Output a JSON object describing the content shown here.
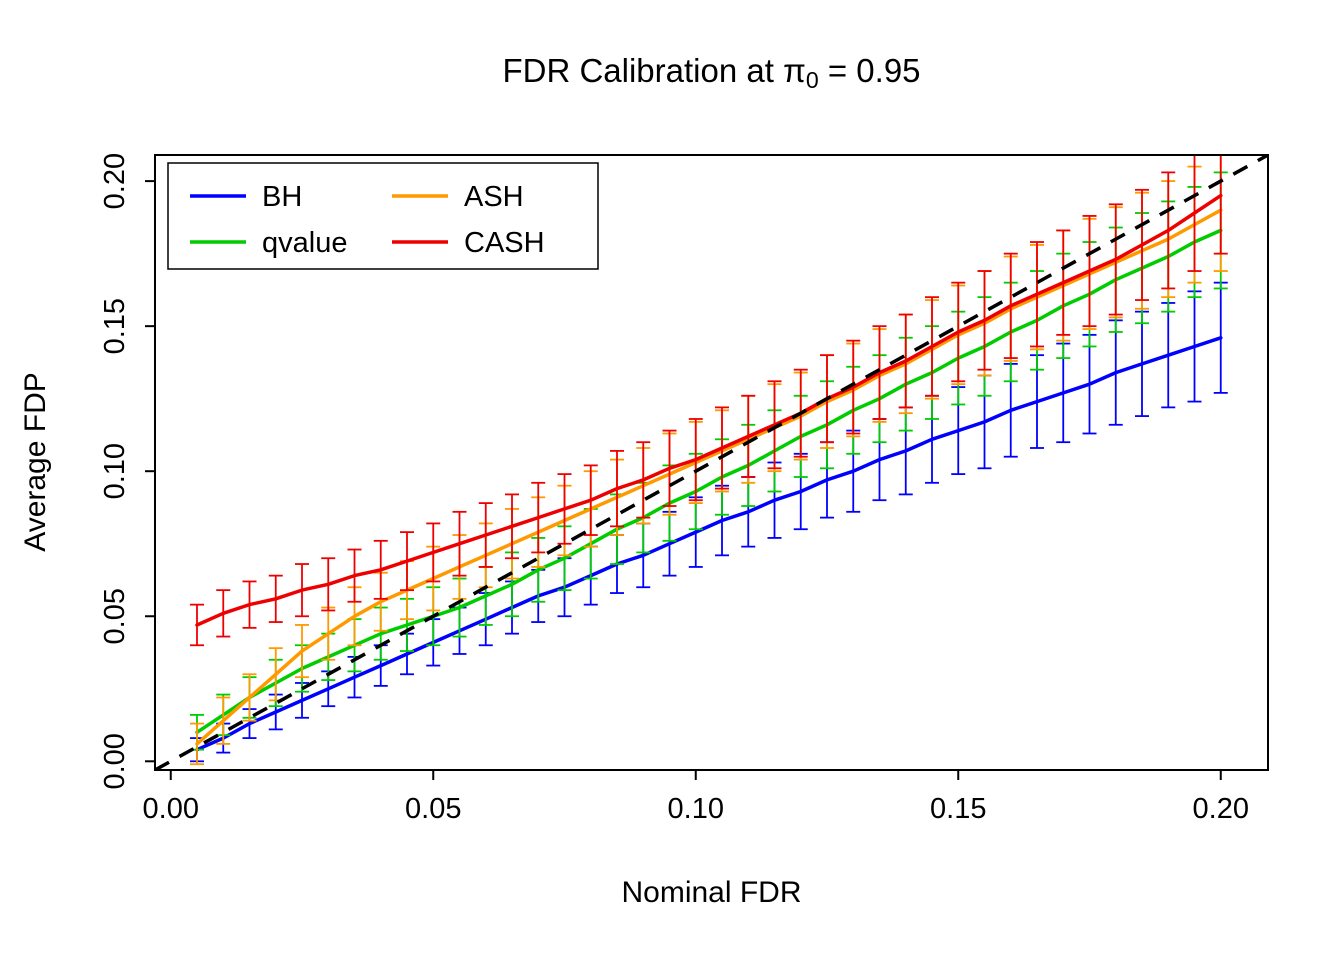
{
  "title": {
    "prefix": "FDR Calibration at π",
    "subscript": "0",
    "suffix": " = 0.95"
  },
  "chart_data": {
    "type": "line",
    "title": "FDR Calibration at π0 = 0.95",
    "xlabel": "Nominal FDR",
    "ylabel": "Average FDP",
    "xlim": [
      0,
      0.205
    ],
    "ylim": [
      0,
      0.205
    ],
    "grid": false,
    "xticks": {
      "values": [
        0,
        0.05,
        0.1,
        0.15,
        0.2
      ],
      "labels": [
        "0.00",
        "0.05",
        "0.10",
        "0.15",
        "0.20"
      ]
    },
    "yticks": {
      "values": [
        0,
        0.05,
        0.1,
        0.15,
        0.2
      ],
      "labels": [
        "0.00",
        "0.05",
        "0.10",
        "0.15",
        "0.20"
      ]
    },
    "legend": {
      "position": "top-left",
      "columns": 2,
      "entries": [
        "BH",
        "qvalue",
        "ASH",
        "CASH"
      ]
    },
    "reference_line": {
      "label": "y = x",
      "style": "dashed",
      "color": "#000000"
    },
    "x": [
      0.005,
      0.01,
      0.015,
      0.02,
      0.025,
      0.03,
      0.035,
      0.04,
      0.045,
      0.05,
      0.055,
      0.06,
      0.065,
      0.07,
      0.075,
      0.08,
      0.085,
      0.09,
      0.095,
      0.1,
      0.105,
      0.11,
      0.115,
      0.12,
      0.125,
      0.13,
      0.135,
      0.14,
      0.145,
      0.15,
      0.155,
      0.16,
      0.165,
      0.17,
      0.175,
      0.18,
      0.185,
      0.19,
      0.195,
      0.2
    ],
    "series": [
      {
        "name": "BH",
        "color": "#0000FF",
        "values": [
          0.004,
          0.008,
          0.013,
          0.017,
          0.021,
          0.025,
          0.029,
          0.033,
          0.037,
          0.041,
          0.045,
          0.049,
          0.053,
          0.057,
          0.06,
          0.064,
          0.068,
          0.071,
          0.075,
          0.079,
          0.083,
          0.086,
          0.09,
          0.093,
          0.097,
          0.1,
          0.104,
          0.107,
          0.111,
          0.114,
          0.117,
          0.121,
          0.124,
          0.127,
          0.13,
          0.134,
          0.137,
          0.14,
          0.143,
          0.146
        ],
        "err": [
          0.004,
          0.005,
          0.005,
          0.006,
          0.006,
          0.006,
          0.007,
          0.007,
          0.007,
          0.008,
          0.008,
          0.009,
          0.009,
          0.009,
          0.01,
          0.01,
          0.01,
          0.011,
          0.011,
          0.012,
          0.012,
          0.012,
          0.013,
          0.013,
          0.013,
          0.014,
          0.014,
          0.015,
          0.015,
          0.015,
          0.016,
          0.016,
          0.016,
          0.017,
          0.017,
          0.018,
          0.018,
          0.018,
          0.019,
          0.019
        ]
      },
      {
        "name": "qvalue",
        "color": "#00CC00",
        "values": [
          0.01,
          0.016,
          0.022,
          0.027,
          0.032,
          0.036,
          0.04,
          0.044,
          0.047,
          0.05,
          0.053,
          0.057,
          0.061,
          0.066,
          0.07,
          0.075,
          0.08,
          0.084,
          0.089,
          0.093,
          0.098,
          0.102,
          0.107,
          0.112,
          0.116,
          0.121,
          0.125,
          0.13,
          0.134,
          0.139,
          0.143,
          0.148,
          0.152,
          0.157,
          0.161,
          0.166,
          0.17,
          0.174,
          0.179,
          0.183
        ],
        "err": [
          0.006,
          0.007,
          0.007,
          0.008,
          0.008,
          0.008,
          0.009,
          0.009,
          0.009,
          0.01,
          0.01,
          0.01,
          0.011,
          0.011,
          0.011,
          0.012,
          0.012,
          0.012,
          0.013,
          0.013,
          0.013,
          0.014,
          0.014,
          0.014,
          0.015,
          0.015,
          0.015,
          0.016,
          0.016,
          0.016,
          0.017,
          0.017,
          0.017,
          0.018,
          0.018,
          0.018,
          0.019,
          0.019,
          0.019,
          0.02
        ]
      },
      {
        "name": "ASH",
        "color": "#FF9900",
        "values": [
          0.006,
          0.014,
          0.022,
          0.03,
          0.038,
          0.044,
          0.05,
          0.055,
          0.059,
          0.063,
          0.067,
          0.071,
          0.075,
          0.079,
          0.083,
          0.087,
          0.091,
          0.095,
          0.099,
          0.103,
          0.107,
          0.111,
          0.115,
          0.119,
          0.124,
          0.128,
          0.133,
          0.137,
          0.142,
          0.147,
          0.151,
          0.156,
          0.16,
          0.164,
          0.168,
          0.172,
          0.176,
          0.18,
          0.185,
          0.19
        ],
        "err": [
          0.007,
          0.008,
          0.008,
          0.009,
          0.009,
          0.009,
          0.01,
          0.01,
          0.01,
          0.011,
          0.011,
          0.011,
          0.012,
          0.012,
          0.012,
          0.013,
          0.013,
          0.013,
          0.014,
          0.014,
          0.014,
          0.015,
          0.015,
          0.015,
          0.016,
          0.016,
          0.016,
          0.017,
          0.017,
          0.017,
          0.018,
          0.018,
          0.018,
          0.019,
          0.019,
          0.019,
          0.02,
          0.02,
          0.02,
          0.021
        ]
      },
      {
        "name": "CASH",
        "color": "#EE0000",
        "values": [
          0.047,
          0.051,
          0.054,
          0.056,
          0.059,
          0.061,
          0.064,
          0.066,
          0.069,
          0.072,
          0.075,
          0.078,
          0.081,
          0.084,
          0.087,
          0.09,
          0.094,
          0.097,
          0.101,
          0.104,
          0.108,
          0.112,
          0.116,
          0.12,
          0.125,
          0.129,
          0.134,
          0.138,
          0.143,
          0.148,
          0.152,
          0.157,
          0.161,
          0.165,
          0.169,
          0.173,
          0.178,
          0.183,
          0.189,
          0.195
        ],
        "err": [
          0.007,
          0.008,
          0.008,
          0.008,
          0.009,
          0.009,
          0.009,
          0.01,
          0.01,
          0.01,
          0.011,
          0.011,
          0.011,
          0.012,
          0.012,
          0.012,
          0.013,
          0.013,
          0.013,
          0.014,
          0.014,
          0.014,
          0.015,
          0.015,
          0.015,
          0.016,
          0.016,
          0.016,
          0.017,
          0.017,
          0.017,
          0.018,
          0.018,
          0.018,
          0.019,
          0.019,
          0.019,
          0.02,
          0.02,
          0.02
        ]
      }
    ]
  }
}
